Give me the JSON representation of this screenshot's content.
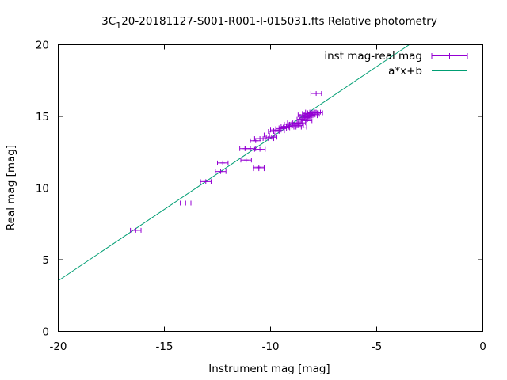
{
  "chart_data": {
    "type": "scatter",
    "title_prefix": "3C",
    "title_subscript": "1",
    "title_suffix": "20-20181127-S001-R001-I-015031.fts Relative photometry",
    "xlabel": "Instrument mag [mag]",
    "ylabel": "Real mag [mag]",
    "xlim": [
      -20,
      0
    ],
    "ylim": [
      0,
      20
    ],
    "xticks": [
      -20,
      -15,
      -10,
      -5,
      0
    ],
    "xtick_labels": [
      "-20",
      "-15",
      "-10",
      "-5",
      "0"
    ],
    "yticks": [
      0,
      5,
      10,
      15,
      20
    ],
    "ytick_labels": [
      "0",
      "5",
      "10",
      "15",
      "20"
    ],
    "grid": false,
    "legend_position": "top-right",
    "series": [
      {
        "name": "inst mag-real mag",
        "type": "scatter-errorbars",
        "color": "#9400d3",
        "x_err": 0.25,
        "points": [
          [
            -16.35,
            7.05
          ],
          [
            -14.0,
            8.95
          ],
          [
            -13.05,
            10.45
          ],
          [
            -12.35,
            11.15
          ],
          [
            -12.25,
            11.75
          ],
          [
            -11.2,
            12.75
          ],
          [
            -11.15,
            11.95
          ],
          [
            -10.95,
            12.75
          ],
          [
            -10.7,
            13.3
          ],
          [
            -10.55,
            11.45
          ],
          [
            -10.55,
            11.35
          ],
          [
            -10.5,
            12.7
          ],
          [
            -10.5,
            13.45
          ],
          [
            -10.1,
            13.45
          ],
          [
            -10.05,
            13.7
          ],
          [
            -9.95,
            13.55
          ],
          [
            -9.85,
            13.95
          ],
          [
            -9.75,
            14.05
          ],
          [
            -9.6,
            14.0
          ],
          [
            -9.5,
            14.15
          ],
          [
            -9.35,
            14.2
          ],
          [
            -9.25,
            14.3
          ],
          [
            -9.15,
            14.25
          ],
          [
            -9.1,
            14.45
          ],
          [
            -9.0,
            14.35
          ],
          [
            -8.95,
            14.55
          ],
          [
            -8.85,
            14.45
          ],
          [
            -8.75,
            14.5
          ],
          [
            -8.7,
            14.35
          ],
          [
            -8.6,
            14.55
          ],
          [
            -8.55,
            14.25
          ],
          [
            -8.5,
            14.8
          ],
          [
            -8.45,
            15.1
          ],
          [
            -8.4,
            14.9
          ],
          [
            -8.35,
            15.0
          ],
          [
            -8.3,
            14.7
          ],
          [
            -8.25,
            15.2
          ],
          [
            -8.2,
            14.95
          ],
          [
            -8.15,
            15.1
          ],
          [
            -8.1,
            15.3
          ],
          [
            -8.05,
            15.05
          ],
          [
            -8.0,
            15.25
          ],
          [
            -7.95,
            15.15
          ],
          [
            -7.9,
            15.3
          ],
          [
            -7.8,
            15.25
          ],
          [
            -7.85,
            16.6
          ]
        ]
      },
      {
        "name": "a*x+b",
        "type": "line",
        "color": "#009e73",
        "x": [
          -20,
          -3.47
        ],
        "y": [
          3.53,
          20
        ]
      }
    ]
  }
}
